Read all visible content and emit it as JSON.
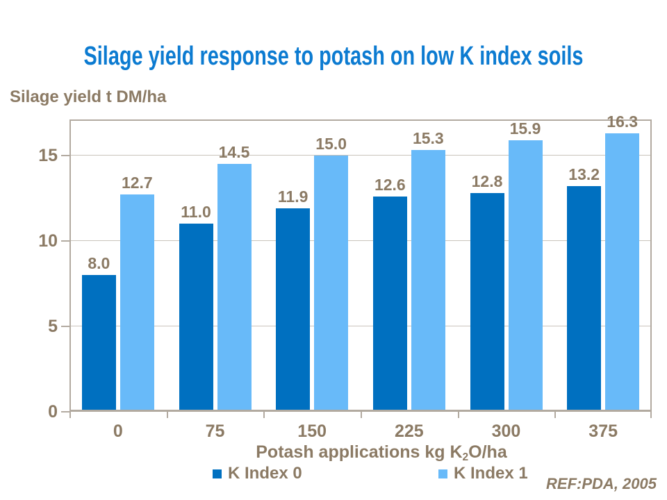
{
  "colors": {
    "title-blue": "#0c7bd1",
    "text-brown": "#8b7a64",
    "axis-line": "#b2aaa0",
    "gridline": "#c9c3bb",
    "series-dark-blue": "#0070c0",
    "series-light-blue": "#68baf9"
  },
  "footer": {
    "ref": "REF:PDA, 2005"
  },
  "chart_data": {
    "type": "bar",
    "title": "Silage yield response to potash on low K index soils",
    "ylabel": "Silage yield t DM/ha",
    "xlabel_parts": {
      "prefix": "Potash applications kg K",
      "sub": "2",
      "suffix": "O/ha"
    },
    "categories": [
      "0",
      "75",
      "150",
      "225",
      "300",
      "375"
    ],
    "series": [
      {
        "name": "K Index 0",
        "color": "#0070c0",
        "values": [
          8.0,
          11.0,
          11.9,
          12.6,
          12.8,
          13.2
        ]
      },
      {
        "name": "K Index 1",
        "color": "#68baf9",
        "values": [
          12.7,
          14.5,
          15.0,
          15.3,
          15.9,
          16.3
        ]
      }
    ],
    "yticks": [
      0,
      5,
      10,
      15
    ],
    "ylim": [
      0,
      17.1
    ],
    "grid": true,
    "value_labels": true,
    "value_label_decimals": 1,
    "legend_position": "bottom"
  }
}
